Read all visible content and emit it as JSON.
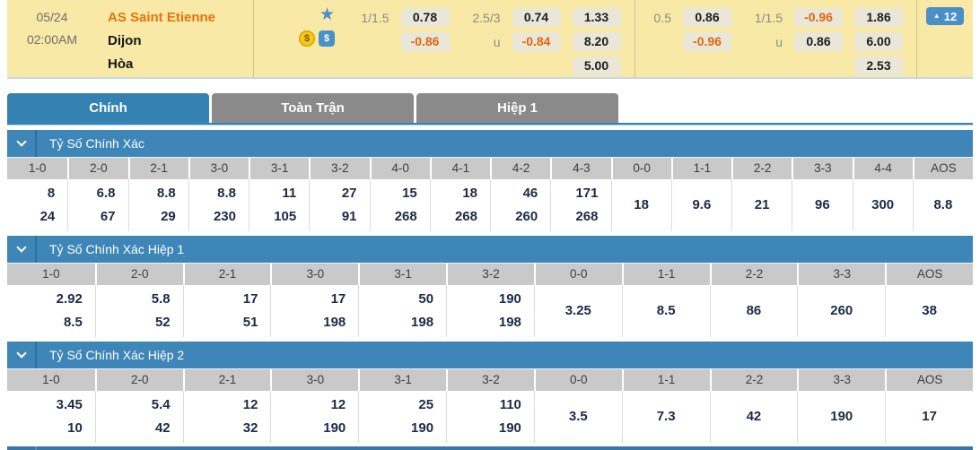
{
  "colors": {
    "header_bg": "#f9e9a7",
    "section_blue": "#3e86b8",
    "active_tab_blue": "#3382b2",
    "inactive_tab_gray": "#8a8a8a",
    "favorite_orange": "#e8720c",
    "negative_odds_orange": "#e0670b",
    "badge_blue": "#4a8fc7"
  },
  "match": {
    "date": "05/24",
    "time": "02:00AM",
    "home": "AS Saint Etienne",
    "away": "Dijon",
    "draw": "Hòa",
    "icons": {
      "star": "★",
      "coin": "$",
      "cash": "$"
    },
    "groups": [
      {
        "hcp_line": "1/1.5",
        "hcp_home": "0.78",
        "hcp_away": "-0.86",
        "ou_line": "2.5/3",
        "ou_over": "0.74",
        "u_label": "u",
        "ou_under": "-0.84",
        "x12": {
          "home": "1.33",
          "away": "8.20",
          "draw": "5.00"
        }
      },
      {
        "hcp_line": "0.5",
        "hcp_home": "0.86",
        "hcp_away": "-0.96",
        "ou_line": "1/1.5",
        "ou_over": "-0.96",
        "u_label": "u",
        "ou_under": "0.86",
        "x12": {
          "home": "1.86",
          "away": "6.00",
          "draw": "2.53"
        }
      }
    ],
    "badge": {
      "arrow": "▲",
      "count": "12"
    }
  },
  "tabs": {
    "items": [
      {
        "label": "Chính",
        "active": true
      },
      {
        "label": "Toàn Trận",
        "active": false
      },
      {
        "label": "Hiệp 1",
        "active": false
      }
    ]
  },
  "sections": [
    {
      "title": "Tỷ Số Chính Xác",
      "cells": [
        {
          "col": "1-0",
          "values": [
            "8",
            "24"
          ]
        },
        {
          "col": "2-0",
          "values": [
            "6.8",
            "67"
          ]
        },
        {
          "col": "2-1",
          "values": [
            "8.8",
            "29"
          ]
        },
        {
          "col": "3-0",
          "values": [
            "8.8",
            "230"
          ]
        },
        {
          "col": "3-1",
          "values": [
            "11",
            "105"
          ]
        },
        {
          "col": "3-2",
          "values": [
            "27",
            "91"
          ]
        },
        {
          "col": "4-0",
          "values": [
            "15",
            "268"
          ]
        },
        {
          "col": "4-1",
          "values": [
            "18",
            "268"
          ]
        },
        {
          "col": "4-2",
          "values": [
            "46",
            "260"
          ]
        },
        {
          "col": "4-3",
          "values": [
            "171",
            "268"
          ]
        },
        {
          "col": "0-0",
          "values": [
            "18"
          ]
        },
        {
          "col": "1-1",
          "values": [
            "9.6"
          ]
        },
        {
          "col": "2-2",
          "values": [
            "21"
          ]
        },
        {
          "col": "3-3",
          "values": [
            "96"
          ]
        },
        {
          "col": "4-4",
          "values": [
            "300"
          ]
        },
        {
          "col": "AOS",
          "values": [
            "8.8"
          ]
        }
      ]
    },
    {
      "title": "Tỷ Số Chính Xác Hiệp 1",
      "cells": [
        {
          "col": "1-0",
          "values": [
            "2.92",
            "8.5"
          ]
        },
        {
          "col": "2-0",
          "values": [
            "5.8",
            "52"
          ]
        },
        {
          "col": "2-1",
          "values": [
            "17",
            "51"
          ]
        },
        {
          "col": "3-0",
          "values": [
            "17",
            "198"
          ]
        },
        {
          "col": "3-1",
          "values": [
            "50",
            "198"
          ]
        },
        {
          "col": "3-2",
          "values": [
            "190",
            "198"
          ]
        },
        {
          "col": "0-0",
          "values": [
            "3.25"
          ]
        },
        {
          "col": "1-1",
          "values": [
            "8.5"
          ]
        },
        {
          "col": "2-2",
          "values": [
            "86"
          ]
        },
        {
          "col": "3-3",
          "values": [
            "260"
          ]
        },
        {
          "col": "AOS",
          "values": [
            "38"
          ]
        }
      ]
    },
    {
      "title": "Tỷ Số Chính Xác Hiệp 2",
      "cells": [
        {
          "col": "1-0",
          "values": [
            "3.45",
            "10"
          ]
        },
        {
          "col": "2-0",
          "values": [
            "5.4",
            "42"
          ]
        },
        {
          "col": "2-1",
          "values": [
            "12",
            "32"
          ]
        },
        {
          "col": "3-0",
          "values": [
            "12",
            "190"
          ]
        },
        {
          "col": "3-1",
          "values": [
            "25",
            "190"
          ]
        },
        {
          "col": "3-2",
          "values": [
            "110",
            "190"
          ]
        },
        {
          "col": "0-0",
          "values": [
            "3.5"
          ]
        },
        {
          "col": "1-1",
          "values": [
            "7.3"
          ]
        },
        {
          "col": "2-2",
          "values": [
            "42"
          ]
        },
        {
          "col": "3-3",
          "values": [
            "190"
          ]
        },
        {
          "col": "AOS",
          "values": [
            "17"
          ]
        }
      ]
    }
  ]
}
